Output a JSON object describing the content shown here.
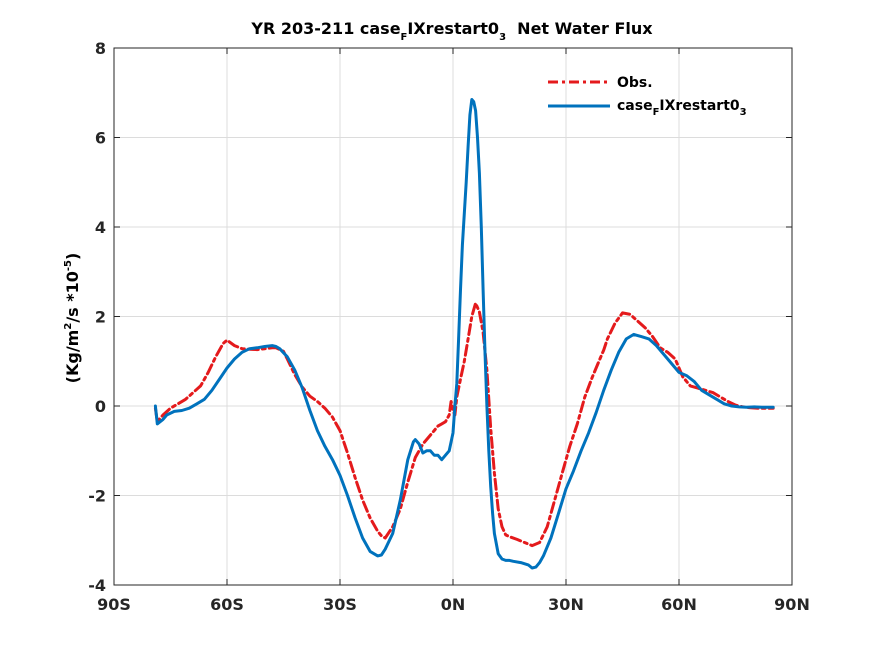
{
  "chart_data": {
    "type": "line",
    "title": {
      "prefix": "YR 203-211 case",
      "sub1": "F",
      "mid": "IXrestart0",
      "sub2": "3",
      "suffix": "  Net Water Flux"
    },
    "ylabel": {
      "part1": "(Kg/m",
      "sup1": "2",
      "part2": "/s *10",
      "sup2": "-5",
      "part3": ")"
    },
    "xlim": [
      -90,
      90
    ],
    "ylim": [
      -4,
      8
    ],
    "xticks": [
      -90,
      -60,
      -30,
      0,
      30,
      60,
      90
    ],
    "xtick_labels": [
      "90S",
      "60S",
      "30S",
      "0N",
      "30N",
      "60N",
      "90N"
    ],
    "yticks": [
      -4,
      -2,
      0,
      2,
      4,
      6,
      8
    ],
    "ytick_labels": [
      "-4",
      "-2",
      "0",
      "2",
      "4",
      "6",
      "8"
    ],
    "grid": true,
    "legend_position": "top-right",
    "series": [
      {
        "name": "Obs.",
        "color": "#e41a1c",
        "style": "dash-dot",
        "x": [
          -79,
          -78.5,
          -77,
          -75,
          -73,
          -71,
          -69,
          -67,
          -65,
          -63,
          -61,
          -60,
          -58,
          -56,
          -54,
          -52,
          -50,
          -48,
          -47,
          -45,
          -44,
          -42,
          -40,
          -38,
          -36,
          -34,
          -32,
          -30,
          -28,
          -26,
          -24,
          -22,
          -20,
          -19,
          -18,
          -16,
          -14,
          -12,
          -10,
          -8,
          -6,
          -5,
          -4,
          -3,
          -2,
          -1,
          -0.5,
          0,
          0.5,
          1,
          2,
          3,
          4,
          5,
          6,
          7,
          8,
          9,
          10,
          11,
          12,
          13,
          14,
          15,
          17,
          19,
          21,
          23,
          25,
          27,
          29,
          31,
          33,
          35,
          37,
          39,
          40,
          41,
          43,
          45,
          47,
          49,
          51,
          53,
          55,
          57,
          59,
          61,
          63,
          65,
          67,
          69,
          71,
          73,
          75,
          77,
          79,
          81,
          83,
          85
        ],
        "values": [
          -0.05,
          -0.35,
          -0.2,
          -0.05,
          0.05,
          0.15,
          0.3,
          0.45,
          0.75,
          1.1,
          1.4,
          1.47,
          1.35,
          1.28,
          1.27,
          1.26,
          1.28,
          1.3,
          1.3,
          1.22,
          1.05,
          0.7,
          0.42,
          0.22,
          0.1,
          -0.05,
          -0.25,
          -0.55,
          -1.05,
          -1.6,
          -2.1,
          -2.5,
          -2.8,
          -2.9,
          -2.95,
          -2.7,
          -2.3,
          -1.7,
          -1.15,
          -0.85,
          -0.65,
          -0.55,
          -0.45,
          -0.4,
          -0.35,
          -0.2,
          0.1,
          -0.1,
          -0.2,
          0.2,
          0.6,
          1.0,
          1.5,
          2.0,
          2.3,
          2.1,
          1.65,
          0.8,
          -0.5,
          -1.5,
          -2.3,
          -2.7,
          -2.88,
          -2.92,
          -2.98,
          -3.05,
          -3.12,
          -3.05,
          -2.7,
          -2.1,
          -1.5,
          -0.9,
          -0.4,
          0.2,
          0.65,
          1.05,
          1.25,
          1.5,
          1.85,
          2.08,
          2.05,
          1.9,
          1.75,
          1.55,
          1.3,
          1.2,
          1.05,
          0.65,
          0.45,
          0.4,
          0.35,
          0.3,
          0.2,
          0.1,
          0.02,
          -0.02,
          -0.04,
          -0.05,
          -0.05,
          -0.05
        ]
      },
      {
        "name": "caseFIXrestart03",
        "legend_parts": {
          "prefix": "case",
          "sub1": "F",
          "mid": "IXrestart0",
          "sub2": "3"
        },
        "color": "#0072bd",
        "style": "solid",
        "x": [
          -79,
          -78.5,
          -77,
          -76,
          -74,
          -72,
          -70,
          -68,
          -66,
          -64,
          -62,
          -60,
          -58,
          -56,
          -54,
          -52,
          -50,
          -48,
          -47,
          -46,
          -44,
          -42,
          -40,
          -38,
          -36,
          -34,
          -32,
          -30,
          -28,
          -26,
          -24,
          -22,
          -20,
          -19,
          -18,
          -16,
          -14,
          -12,
          -10.5,
          -10,
          -9,
          -8,
          -7,
          -6,
          -5,
          -4,
          -3,
          -2,
          -1,
          0,
          0.5,
          1,
          1.5,
          2,
          2.5,
          3,
          3.5,
          4,
          4.5,
          5,
          5.5,
          6,
          6.5,
          7,
          7.5,
          8,
          8.5,
          9,
          9.5,
          10,
          10.5,
          11,
          12,
          13,
          14,
          15,
          16,
          18,
          20,
          21,
          22,
          23,
          24,
          26,
          28,
          30,
          32,
          34,
          36,
          38,
          40,
          42,
          44,
          46,
          48,
          50,
          52,
          54,
          56,
          58,
          60,
          62,
          64,
          66,
          68,
          70,
          72,
          74,
          76,
          78,
          80,
          82,
          84,
          85
        ],
        "values": [
          0.0,
          -0.4,
          -0.3,
          -0.2,
          -0.12,
          -0.1,
          -0.05,
          0.05,
          0.15,
          0.35,
          0.6,
          0.85,
          1.05,
          1.2,
          1.28,
          1.3,
          1.33,
          1.35,
          1.33,
          1.28,
          1.1,
          0.8,
          0.4,
          -0.1,
          -0.55,
          -0.9,
          -1.2,
          -1.55,
          -2.0,
          -2.5,
          -2.95,
          -3.25,
          -3.35,
          -3.33,
          -3.2,
          -2.85,
          -2.1,
          -1.2,
          -0.8,
          -0.75,
          -0.85,
          -1.05,
          -1.0,
          -1.0,
          -1.1,
          -1.1,
          -1.2,
          -1.1,
          -1.0,
          -0.6,
          0.0,
          0.5,
          1.5,
          2.6,
          3.6,
          4.3,
          5.0,
          5.8,
          6.5,
          6.85,
          6.8,
          6.6,
          6.0,
          5.2,
          4.0,
          2.6,
          1.2,
          0.0,
          -1.0,
          -1.8,
          -2.4,
          -2.85,
          -3.3,
          -3.42,
          -3.45,
          -3.45,
          -3.47,
          -3.5,
          -3.55,
          -3.62,
          -3.6,
          -3.5,
          -3.35,
          -2.95,
          -2.4,
          -1.85,
          -1.45,
          -1.0,
          -0.6,
          -0.15,
          0.35,
          0.8,
          1.2,
          1.5,
          1.6,
          1.55,
          1.5,
          1.35,
          1.15,
          0.95,
          0.75,
          0.68,
          0.55,
          0.35,
          0.25,
          0.15,
          0.05,
          0.0,
          -0.02,
          -0.03,
          -0.02,
          -0.03,
          -0.03,
          -0.03
        ]
      }
    ]
  }
}
